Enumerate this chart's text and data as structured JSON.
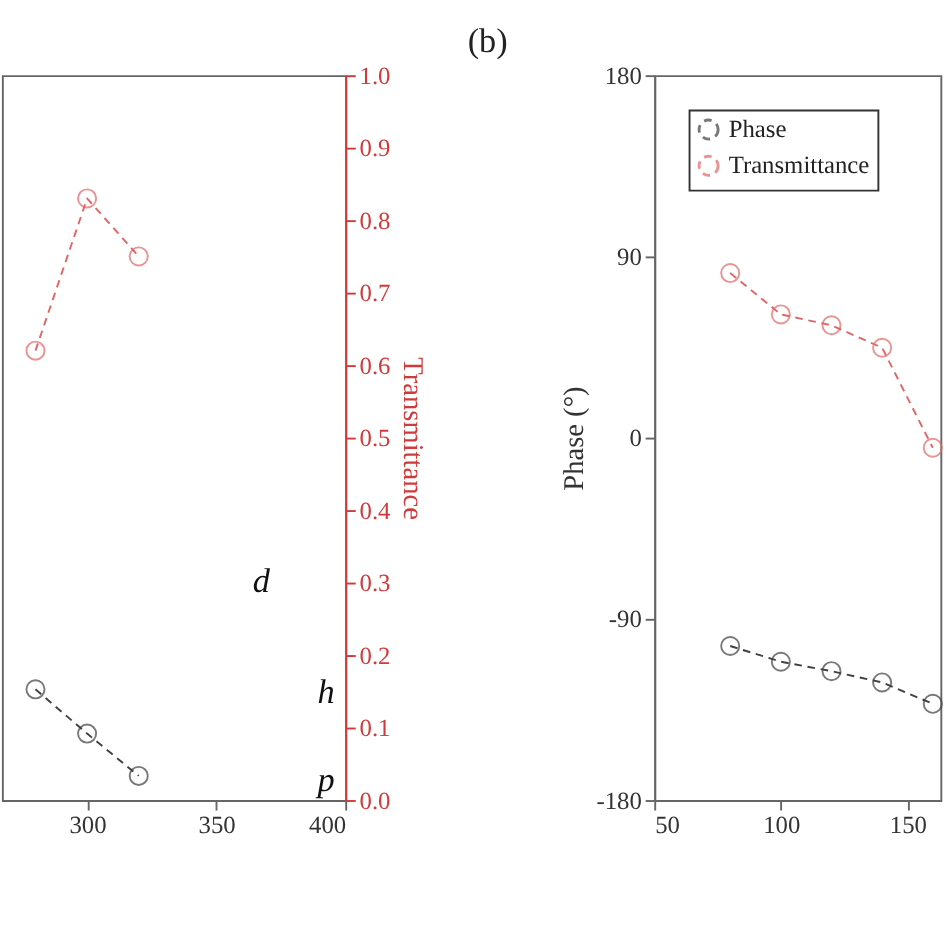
{
  "chart_data": [
    {
      "type": "line",
      "xlim": [
        267,
        400
      ],
      "xticks": [
        300,
        350,
        400
      ],
      "ylim": [
        -180,
        180
      ],
      "y2lim": [
        0,
        1
      ],
      "y2ticks": [
        {
          "value": 0,
          "label": "0.0"
        },
        0.1,
        0.2,
        0.3,
        0.4,
        0.5,
        0.6,
        0.7,
        0.8,
        0.9,
        {
          "value": 1,
          "label": "1.0"
        }
      ],
      "y2label": "Transmittance",
      "marker": "circle",
      "line_style": "dashed",
      "grid": false,
      "legend": false,
      "annotations": [
        "d",
        "h",
        "p"
      ],
      "series": [
        {
          "color": "#404040",
          "axis": "y",
          "x": [
            280,
            300,
            320
          ],
          "values": [
            -125,
            -147,
            -168
          ]
        },
        {
          "color": "#e06666",
          "axis": "y2",
          "x": [
            280,
            300,
            320
          ],
          "values": [
            0.62,
            0.83,
            0.75
          ]
        }
      ]
    },
    {
      "type": "line",
      "title": "(b)",
      "ylabel": "Phase (°)",
      "xlim": [
        50,
        163
      ],
      "xticks": [
        50,
        100,
        150
      ],
      "ylim": [
        -180,
        180
      ],
      "yticks": [
        -180,
        -90,
        0,
        90,
        180
      ],
      "y2lim": [
        0,
        1
      ],
      "marker": "circle",
      "line_style": "dashed",
      "grid": false,
      "legend": "top left",
      "series": [
        {
          "name": "Phase",
          "color": "#404040",
          "axis": "y",
          "x": [
            80,
            100,
            120,
            140,
            160
          ],
          "values": [
            -103.5,
            -111.3,
            -116,
            -121.6,
            -132.2
          ]
        },
        {
          "name": "Transmittance",
          "color": "#e06666",
          "axis": "y2",
          "x": [
            80,
            100,
            120,
            140,
            160
          ],
          "values": [
            0.727,
            0.67,
            0.655,
            0.624,
            0.486
          ]
        }
      ]
    }
  ]
}
